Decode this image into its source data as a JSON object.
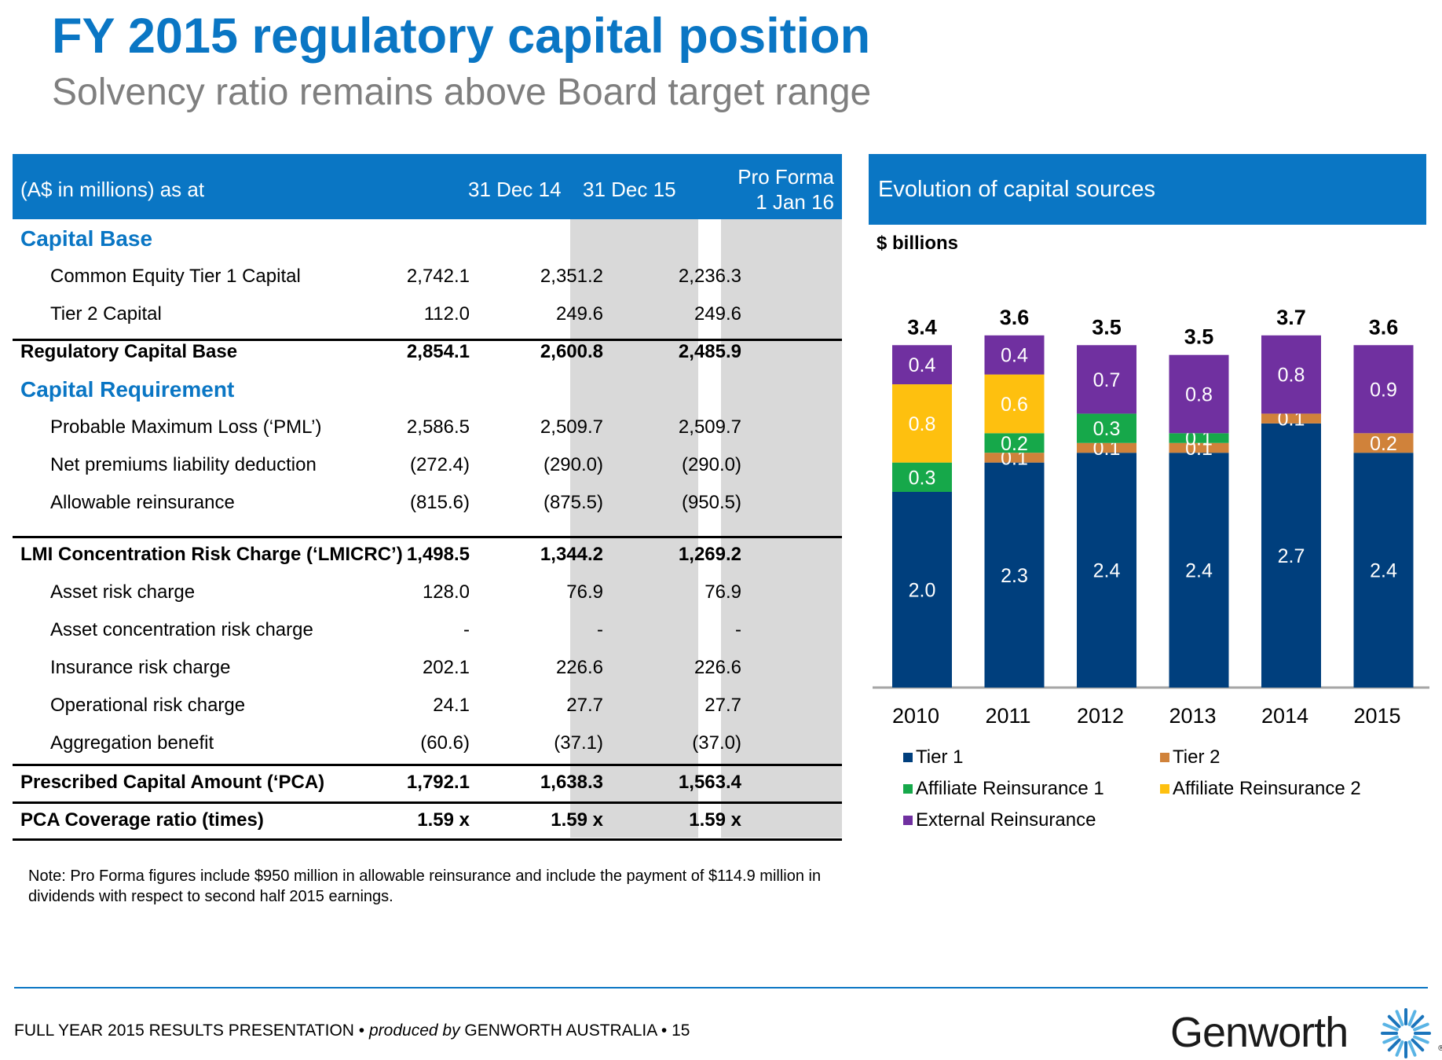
{
  "title": "FY 2015 regulatory capital position",
  "subtitle": "Solvency ratio remains above Board target range",
  "table": {
    "head": {
      "label": "(A$ in millions) as at",
      "col1": "31 Dec 14",
      "col2": "31 Dec 15",
      "col3_line1": "Pro Forma",
      "col3_line2": "1 Jan 16"
    },
    "rows": [
      {
        "label": "Capital Base",
        "v1": "",
        "v2": "",
        "v3": ""
      },
      {
        "label": "Common Equity Tier 1 Capital",
        "v1": "2,742.1",
        "v2": "2,351.2",
        "v3": "2,236.3"
      },
      {
        "label": "Tier 2 Capital",
        "v1": "112.0",
        "v2": "249.6",
        "v3": "249.6"
      },
      {
        "label": "Regulatory Capital Base",
        "v1": "2,854.1",
        "v2": "2,600.8",
        "v3": "2,485.9"
      },
      {
        "label": "Capital Requirement",
        "v1": "",
        "v2": "",
        "v3": ""
      },
      {
        "label": "Probable Maximum Loss (‘PML’)",
        "v1": "2,586.5",
        "v2": "2,509.7",
        "v3": "2,509.7"
      },
      {
        "label": "Net premiums liability deduction",
        "v1": "(272.4)",
        "v2": "(290.0)",
        "v3": "(290.0)"
      },
      {
        "label": "Allowable reinsurance",
        "v1": "(815.6)",
        "v2": "(875.5)",
        "v3": "(950.5)"
      },
      {
        "label": "LMI Concentration Risk Charge (‘LMICRC’)",
        "v1": "1,498.5",
        "v2": "1,344.2",
        "v3": "1,269.2"
      },
      {
        "label": "Asset risk charge",
        "v1": "128.0",
        "v2": "76.9",
        "v3": "76.9"
      },
      {
        "label": "Asset concentration risk charge",
        "v1": "-",
        "v2": "-",
        "v3": "-"
      },
      {
        "label": "Insurance risk charge",
        "v1": "202.1",
        "v2": "226.6",
        "v3": "226.6"
      },
      {
        "label": "Operational risk charge",
        "v1": "24.1",
        "v2": "27.7",
        "v3": "27.7"
      },
      {
        "label": "Aggregation benefit",
        "v1": "(60.6)",
        "v2": "(37.1)",
        "v3": "(37.0)"
      },
      {
        "label": "Prescribed Capital Amount (‘PCA)",
        "v1": "1,792.1",
        "v2": "1,638.3",
        "v3": "1,563.4"
      },
      {
        "label": "PCA Coverage ratio (times)",
        "v1": "1.59 x",
        "v2": "1.59 x",
        "v3": "1.59 x"
      }
    ]
  },
  "note": "Note: Pro Forma figures include $950 million in allowable reinsurance and include the payment of $114.9 million in dividends with respect to second half 2015 earnings.",
  "chart_panel": {
    "header": "Evolution of capital sources",
    "units": "$ billions"
  },
  "chart_data": {
    "type": "bar",
    "stacked": true,
    "title": "Evolution of capital sources",
    "ylabel": "$ billions",
    "categories": [
      "2010",
      "2011",
      "2012",
      "2013",
      "2014",
      "2015"
    ],
    "totals": [
      "3.4",
      "3.6",
      "3.5",
      "3.5",
      "3.7",
      "3.6"
    ],
    "ylim": [
      0,
      4
    ],
    "series": [
      {
        "name": "Tier 1",
        "color": "#003f7d",
        "values": [
          2.0,
          2.3,
          2.4,
          2.4,
          2.7,
          2.4
        ],
        "labels": [
          "2.0",
          "2.3",
          "2.4",
          "2.4",
          "2.7",
          "2.4"
        ]
      },
      {
        "name": "Tier 2",
        "color": "#d0823a",
        "values": [
          0,
          0.1,
          0.1,
          0.1,
          0.1,
          0.2
        ],
        "labels": [
          "",
          "0.1",
          "0.1",
          "0.1",
          "0.1",
          "0.2"
        ]
      },
      {
        "name": "Affiliate Reinsurance 1",
        "color": "#16a84a",
        "values": [
          0.3,
          0.2,
          0.3,
          0.1,
          0,
          0
        ],
        "labels": [
          "0.3",
          "0.2",
          "0.3",
          "0.1",
          "",
          ""
        ]
      },
      {
        "name": "Affiliate Reinsurance 2",
        "color": "#fec00f",
        "values": [
          0.8,
          0.6,
          0,
          0,
          0,
          0
        ],
        "labels": [
          "0.8",
          "0.6",
          "",
          "",
          "",
          ""
        ]
      },
      {
        "name": "External Reinsurance",
        "color": "#7030a0",
        "values": [
          0.4,
          0.4,
          0.7,
          0.8,
          0.8,
          0.9
        ],
        "labels": [
          "0.4",
          "0.4",
          "0.7",
          "0.8",
          "0.8",
          "0.9"
        ]
      }
    ],
    "legend_position": "bottom"
  },
  "footer": {
    "left": "FULL YEAR 2015 RESULTS PRESENTATION • ",
    "italic": "produced by",
    "right": " GENWORTH AUSTRALIA • 15"
  },
  "logo": {
    "text": "Genworth",
    "mark": "®"
  }
}
